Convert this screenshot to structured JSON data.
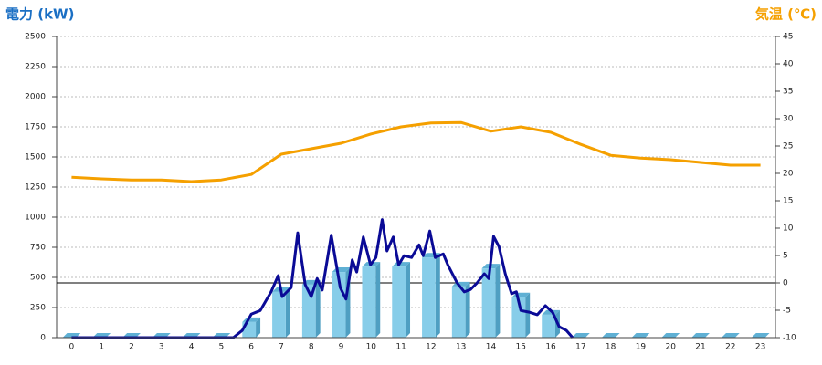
{
  "chart_data": {
    "type": "combo",
    "y_axis_title": "電力 (kW)",
    "y2_axis_title": "気温 (℃)",
    "categories": [
      "0",
      "1",
      "2",
      "3",
      "4",
      "5",
      "6",
      "7",
      "8",
      "9",
      "10",
      "11",
      "12",
      "13",
      "14",
      "15",
      "16",
      "17",
      "18",
      "19",
      "20",
      "21",
      "22",
      "23"
    ],
    "ylim": [
      0,
      2500
    ],
    "yticks": [
      0,
      250,
      500,
      750,
      1000,
      1250,
      1500,
      1750,
      2000,
      2250,
      2500
    ],
    "y2lim": [
      -10,
      45
    ],
    "y2ticks": [
      -10,
      -5,
      0,
      5,
      10,
      15,
      20,
      25,
      30,
      35,
      40,
      45
    ],
    "grid": true,
    "series": [
      {
        "type": "bar",
        "color": "#87cde9",
        "values": [
          0,
          0,
          0,
          0,
          0,
          0,
          130,
          380,
          440,
          545,
          590,
          590,
          665,
          425,
          575,
          335,
          190,
          0,
          0,
          0,
          0,
          0,
          0,
          0
        ]
      },
      {
        "type": "line",
        "color": "#0a0a96",
        "x": [
          0,
          5.4,
          5.7,
          6.0,
          6.3,
          6.66,
          6.9,
          7.03,
          7.33,
          7.55,
          7.8,
          8.0,
          8.2,
          8.37,
          8.67,
          8.97,
          9.16,
          9.37,
          9.52,
          9.74,
          9.98,
          10.16,
          10.37,
          10.53,
          10.74,
          10.92,
          11.1,
          11.35,
          11.6,
          11.74,
          11.96,
          12.14,
          12.41,
          12.56,
          12.87,
          13.11,
          13.32,
          13.54,
          13.78,
          13.93,
          14.09,
          14.27,
          14.48,
          14.69,
          14.85,
          15.0,
          15.3,
          15.55,
          15.82,
          16.06,
          16.28,
          16.52,
          16.73
        ],
        "values": [
          0,
          0,
          60,
          195,
          225,
          380,
          515,
          340,
          415,
          870,
          440,
          340,
          490,
          395,
          850,
          415,
          320,
          645,
          545,
          835,
          605,
          665,
          980,
          720,
          835,
          605,
          680,
          665,
          770,
          680,
          885,
          665,
          695,
          605,
          455,
          380,
          400,
          455,
          530,
          490,
          840,
          755,
          530,
          365,
          380,
          225,
          210,
          190,
          265,
          210,
          90,
          60,
          0
        ]
      },
      {
        "type": "line",
        "axis": "y2",
        "color": "#f5a000",
        "values": [
          19.3,
          19.0,
          18.8,
          18.8,
          18.5,
          18.8,
          19.8,
          23.5,
          24.5,
          25.5,
          27.2,
          28.5,
          29.2,
          29.3,
          27.7,
          28.5,
          27.5,
          25.3,
          23.3,
          22.8,
          22.5,
          22.0,
          21.5,
          21.5
        ]
      }
    ]
  }
}
